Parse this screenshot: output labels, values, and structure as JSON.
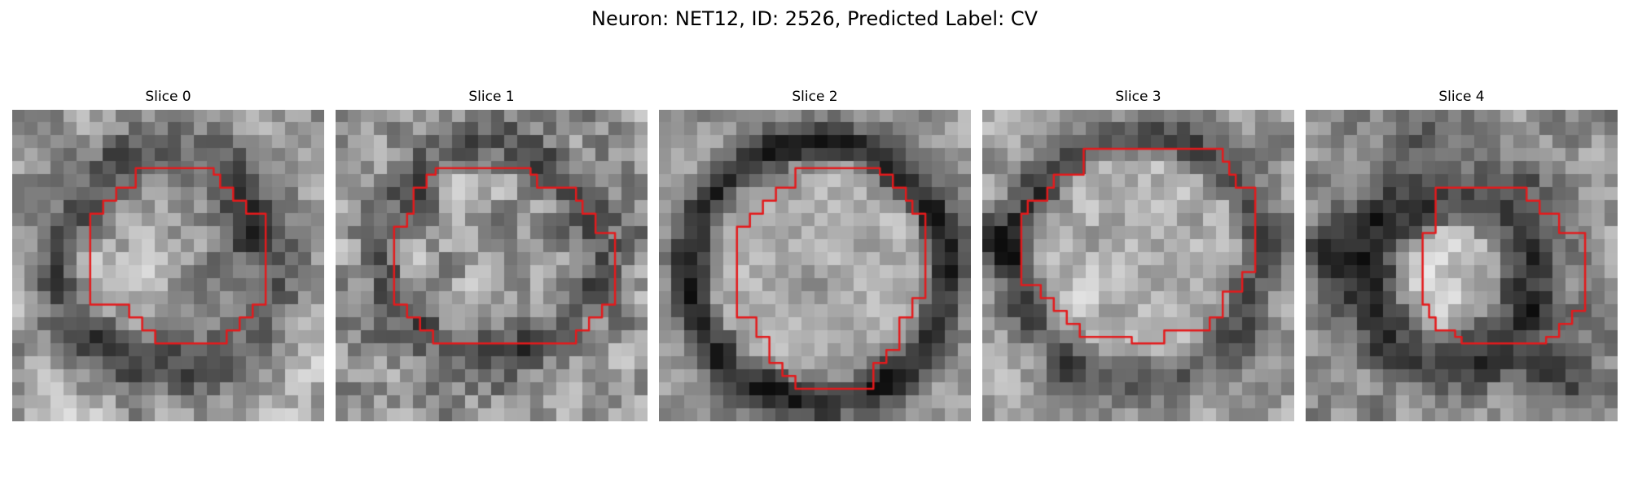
{
  "figure": {
    "title": "Neuron: NET12, ID: 2526, Predicted Label: CV"
  },
  "contour_color": "#e41a1c",
  "grid_size": 24,
  "slices": [
    {
      "title": "Slice 0"
    },
    {
      "title": "Slice 1"
    },
    {
      "title": "Slice 2"
    },
    {
      "title": "Slice 3"
    },
    {
      "title": "Slice 4"
    }
  ]
}
